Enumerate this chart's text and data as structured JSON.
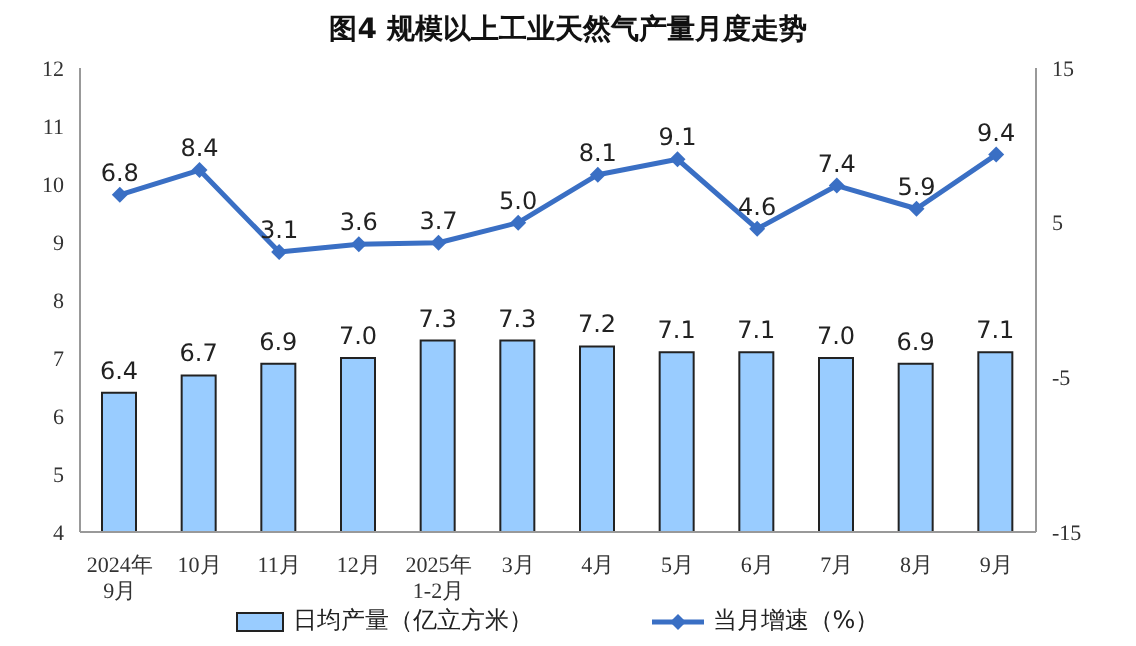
{
  "chart_data": {
    "type": "bar",
    "title": "图4  规模以上工业天然气产量月度走势",
    "categories": [
      "2024年\n9月",
      "10月",
      "11月",
      "12月",
      "2025年\n1-2月",
      "3月",
      "4月",
      "5月",
      "6月",
      "7月",
      "8月",
      "9月"
    ],
    "series": [
      {
        "name": "日均产量（亿立方米）",
        "color": "#99ccff",
        "values": [
          6.4,
          6.7,
          6.9,
          7.0,
          7.3,
          7.3,
          7.2,
          7.1,
          7.1,
          7.0,
          6.9,
          7.1
        ],
        "value_labels": [
          "6.4",
          "6.7",
          "6.9",
          "7.0",
          "7.3",
          "7.3",
          "7.2",
          "7.1",
          "7.1",
          "7.0",
          "6.9",
          "7.1"
        ]
      },
      {
        "name": "当月增速（%）",
        "type": "line",
        "axis": "y2",
        "color": "#3a6fc4",
        "marker": "diamond",
        "values": [
          6.8,
          8.4,
          3.1,
          3.6,
          3.7,
          5.0,
          8.1,
          9.1,
          4.6,
          7.4,
          5.9,
          9.4
        ],
        "value_labels": [
          "6.8",
          "8.4",
          "3.1",
          "3.6",
          "3.7",
          "5.0",
          "8.1",
          "9.1",
          "4.6",
          "7.4",
          "5.9",
          "9.4"
        ]
      }
    ],
    "ylim": [
      4,
      12
    ],
    "yticks": [
      4,
      5,
      6,
      7,
      8,
      9,
      10,
      11,
      12
    ],
    "y2lim": [
      -15,
      15
    ],
    "y2ticks": [
      -15,
      -5,
      5,
      15
    ],
    "grid": false,
    "legend": "bottom"
  }
}
